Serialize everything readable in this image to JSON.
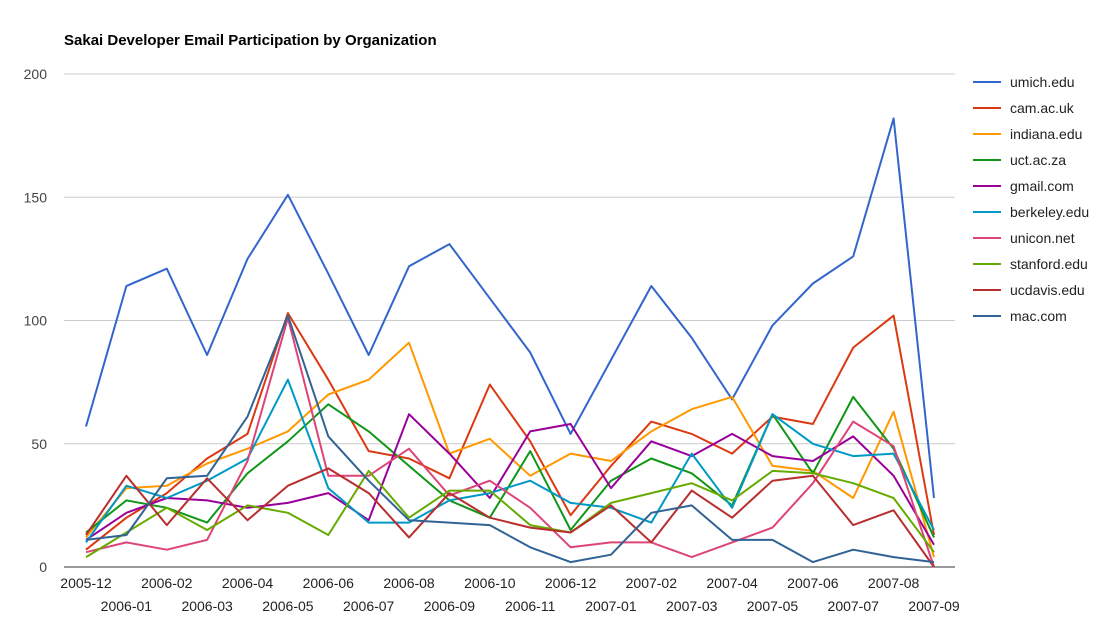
{
  "chart_data": {
    "type": "line",
    "title": "Sakai Developer Email Participation by Organization",
    "xlabel": "",
    "ylabel": "",
    "ylim": [
      0,
      200
    ],
    "yticks": [
      0,
      50,
      100,
      150,
      200
    ],
    "grid": true,
    "legend_position": "right",
    "categories": [
      "2005-12",
      "2006-01",
      "2006-02",
      "2006-03",
      "2006-04",
      "2006-05",
      "2006-06",
      "2006-07",
      "2006-08",
      "2006-09",
      "2006-10",
      "2006-11",
      "2006-12",
      "2007-01",
      "2007-02",
      "2007-03",
      "2007-04",
      "2007-05",
      "2007-06",
      "2007-07",
      "2007-08",
      "2007-09"
    ],
    "series": [
      {
        "name": "umich.edu",
        "color": "#3366cc",
        "values": [
          57,
          114,
          121,
          86,
          125,
          151,
          119,
          86,
          122,
          131,
          109,
          87,
          54,
          84,
          114,
          93,
          68,
          98,
          115,
          126,
          182,
          28
        ]
      },
      {
        "name": "cam.ac.uk",
        "color": "#dc3912",
        "values": [
          7,
          20,
          30,
          44,
          54,
          103,
          76,
          47,
          44,
          36,
          74,
          51,
          21,
          41,
          59,
          54,
          46,
          61,
          58,
          89,
          102,
          13
        ]
      },
      {
        "name": "indiana.edu",
        "color": "#ff9900",
        "values": [
          12,
          32,
          33,
          42,
          48,
          55,
          70,
          76,
          91,
          46,
          52,
          37,
          46,
          43,
          55,
          64,
          69,
          41,
          39,
          28,
          63,
          4
        ]
      },
      {
        "name": "uct.ac.za",
        "color": "#109618",
        "values": [
          14,
          27,
          24,
          18,
          38,
          51,
          66,
          55,
          41,
          27,
          20,
          47,
          15,
          35,
          44,
          38,
          25,
          62,
          38,
          69,
          48,
          12
        ]
      },
      {
        "name": "gmail.com",
        "color": "#990099",
        "values": [
          11,
          22,
          28,
          27,
          24,
          26,
          30,
          19,
          62,
          46,
          28,
          55,
          58,
          32,
          51,
          45,
          54,
          45,
          43,
          53,
          37,
          9
        ]
      },
      {
        "name": "berkeley.edu",
        "color": "#0099c6",
        "values": [
          10,
          33,
          28,
          35,
          44,
          76,
          32,
          18,
          18,
          27,
          30,
          35,
          26,
          24,
          18,
          46,
          24,
          62,
          50,
          45,
          46,
          15
        ]
      },
      {
        "name": "unicon.net",
        "color": "#dd4477",
        "values": [
          6,
          10,
          7,
          11,
          43,
          101,
          37,
          37,
          48,
          29,
          35,
          24,
          8,
          10,
          10,
          4,
          10,
          16,
          34,
          59,
          49,
          0
        ]
      },
      {
        "name": "stanford.edu",
        "color": "#66aa00",
        "values": [
          4,
          14,
          24,
          15,
          25,
          22,
          13,
          39,
          20,
          31,
          31,
          17,
          14,
          26,
          30,
          34,
          27,
          39,
          38,
          34,
          28,
          6
        ]
      },
      {
        "name": "ucdavis.edu",
        "color": "#b82e2e",
        "values": [
          13,
          37,
          17,
          36,
          19,
          33,
          40,
          30,
          12,
          30,
          20,
          16,
          14,
          25,
          10,
          31,
          20,
          35,
          37,
          17,
          23,
          0
        ]
      },
      {
        "name": "mac.com",
        "color": "#316395",
        "values": [
          11,
          13,
          36,
          37,
          61,
          102,
          53,
          35,
          19,
          18,
          17,
          8,
          2,
          5,
          22,
          25,
          11,
          11,
          2,
          7,
          4,
          2
        ]
      }
    ]
  }
}
